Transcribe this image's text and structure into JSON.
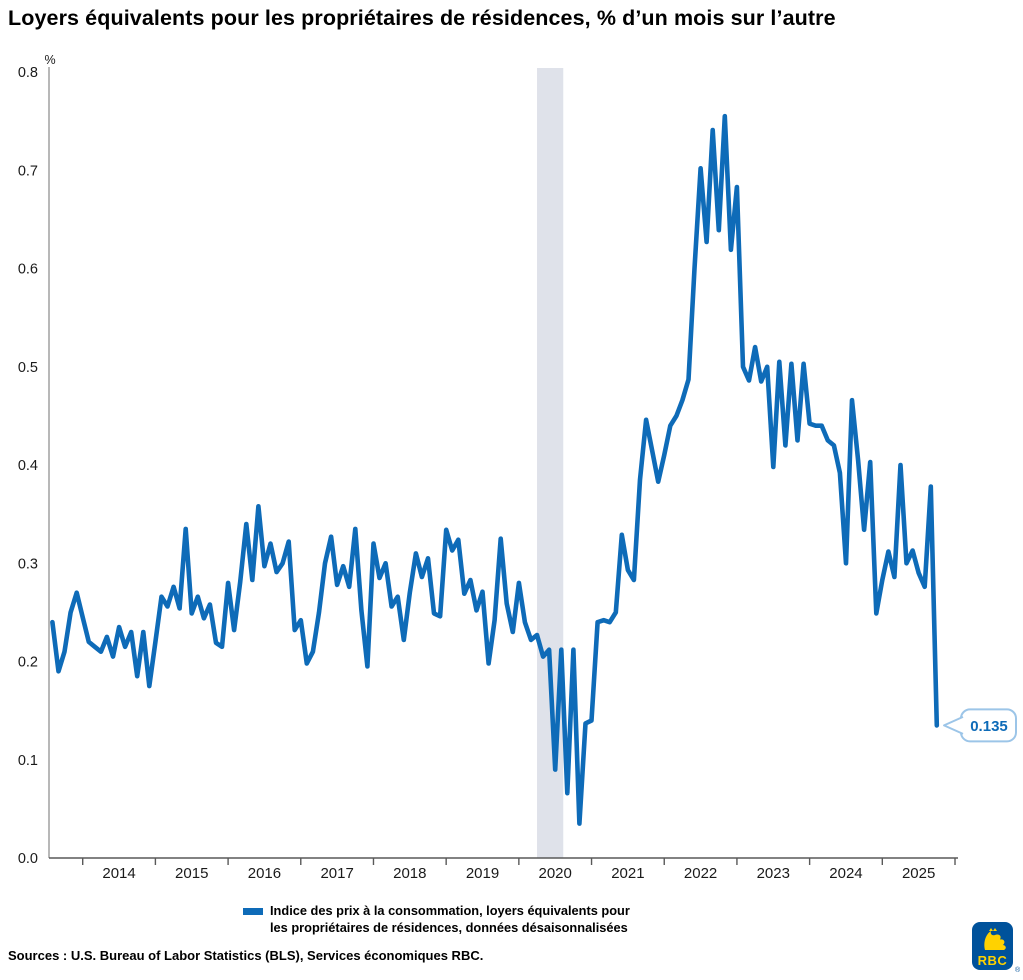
{
  "title": "Loyers équivalents pour les propriétaires de résidences, % d’un mois sur l’autre",
  "y_axis": {
    "unit": "%",
    "ticks": [
      "0.0",
      "0.1",
      "0.2",
      "0.3",
      "0.4",
      "0.5",
      "0.6",
      "0.7",
      "0.8"
    ]
  },
  "x_axis": {
    "years": [
      "2014",
      "2015",
      "2016",
      "2017",
      "2018",
      "2019",
      "2020",
      "2021",
      "2022",
      "2023",
      "2024",
      "2025"
    ]
  },
  "legend": {
    "line1": "Indice des prix à la consommation, loyers équivalents pour",
    "line2": "les propriétaires de résidences, données désaisonnalisées"
  },
  "callout": {
    "value": "0.135"
  },
  "sources": "Sources : U.S. Bureau of Labor Statistics (BLS), Services économiques RBC.",
  "logo": {
    "text": "RBC",
    "registered": "®"
  },
  "colors": {
    "line": "#0e6bb8",
    "band": "#dfe2ea",
    "axis_y": "#a6a6a6",
    "axis_x": "#595959",
    "tick_label": "#1a1a1a",
    "callout_border": "#9cc5e8",
    "callout_text": "#0e6bb8",
    "logo_blue": "#00529b",
    "logo_yellow": "#ffd200"
  },
  "chart_data": {
    "type": "line",
    "title": "Loyers équivalents pour les propriétaires de résidences, % d’un mois sur l’autre",
    "xlabel": "",
    "ylabel": "%",
    "ylim": [
      0,
      0.8
    ],
    "y_tick_step": 0.1,
    "grid": false,
    "legend_position": "bottom",
    "x_start": "2013-08",
    "frequency": "monthly",
    "x_tick_years": [
      2014,
      2015,
      2016,
      2017,
      2018,
      2019,
      2020,
      2021,
      2022,
      2023,
      2024,
      2025
    ],
    "shaded_band": {
      "start": "2020-04",
      "end": "2020-08"
    },
    "last_value_label": "0.135",
    "series": [
      {
        "name": "Indice des prix à la consommation, loyers équivalents pour les propriétaires de résidences, données désaisonnalisées",
        "values": [
          0.24,
          0.19,
          0.21,
          0.25,
          0.27,
          0.245,
          0.22,
          0.215,
          0.21,
          0.225,
          0.205,
          0.235,
          0.215,
          0.23,
          0.185,
          0.23,
          0.175,
          0.22,
          0.266,
          0.256,
          0.276,
          0.254,
          0.335,
          0.249,
          0.266,
          0.244,
          0.258,
          0.219,
          0.215,
          0.28,
          0.232,
          0.281,
          0.34,
          0.283,
          0.358,
          0.297,
          0.32,
          0.291,
          0.3,
          0.322,
          0.232,
          0.242,
          0.198,
          0.21,
          0.25,
          0.3,
          0.327,
          0.278,
          0.297,
          0.276,
          0.335,
          0.252,
          0.195,
          0.32,
          0.285,
          0.3,
          0.256,
          0.266,
          0.222,
          0.27,
          0.31,
          0.286,
          0.305,
          0.249,
          0.246,
          0.334,
          0.313,
          0.324,
          0.269,
          0.283,
          0.252,
          0.271,
          0.198,
          0.242,
          0.325,
          0.259,
          0.23,
          0.28,
          0.24,
          0.222,
          0.227,
          0.205,
          0.212,
          0.09,
          0.212,
          0.066,
          0.212,
          0.035,
          0.137,
          0.14,
          0.24,
          0.242,
          0.24,
          0.25,
          0.329,
          0.293,
          0.283,
          0.385,
          0.446,
          0.415,
          0.383,
          0.41,
          0.44,
          0.45,
          0.466,
          0.487,
          0.6,
          0.702,
          0.627,
          0.741,
          0.639,
          0.755,
          0.619,
          0.683,
          0.5,
          0.486,
          0.52,
          0.485,
          0.5,
          0.398,
          0.505,
          0.42,
          0.503,
          0.425,
          0.503,
          0.442,
          0.44,
          0.44,
          0.425,
          0.42,
          0.392,
          0.3,
          0.466,
          0.405,
          0.334,
          0.403,
          0.249,
          0.283,
          0.312,
          0.286,
          0.4,
          0.3,
          0.313,
          0.29,
          0.276,
          0.378,
          0.135
        ]
      }
    ]
  }
}
